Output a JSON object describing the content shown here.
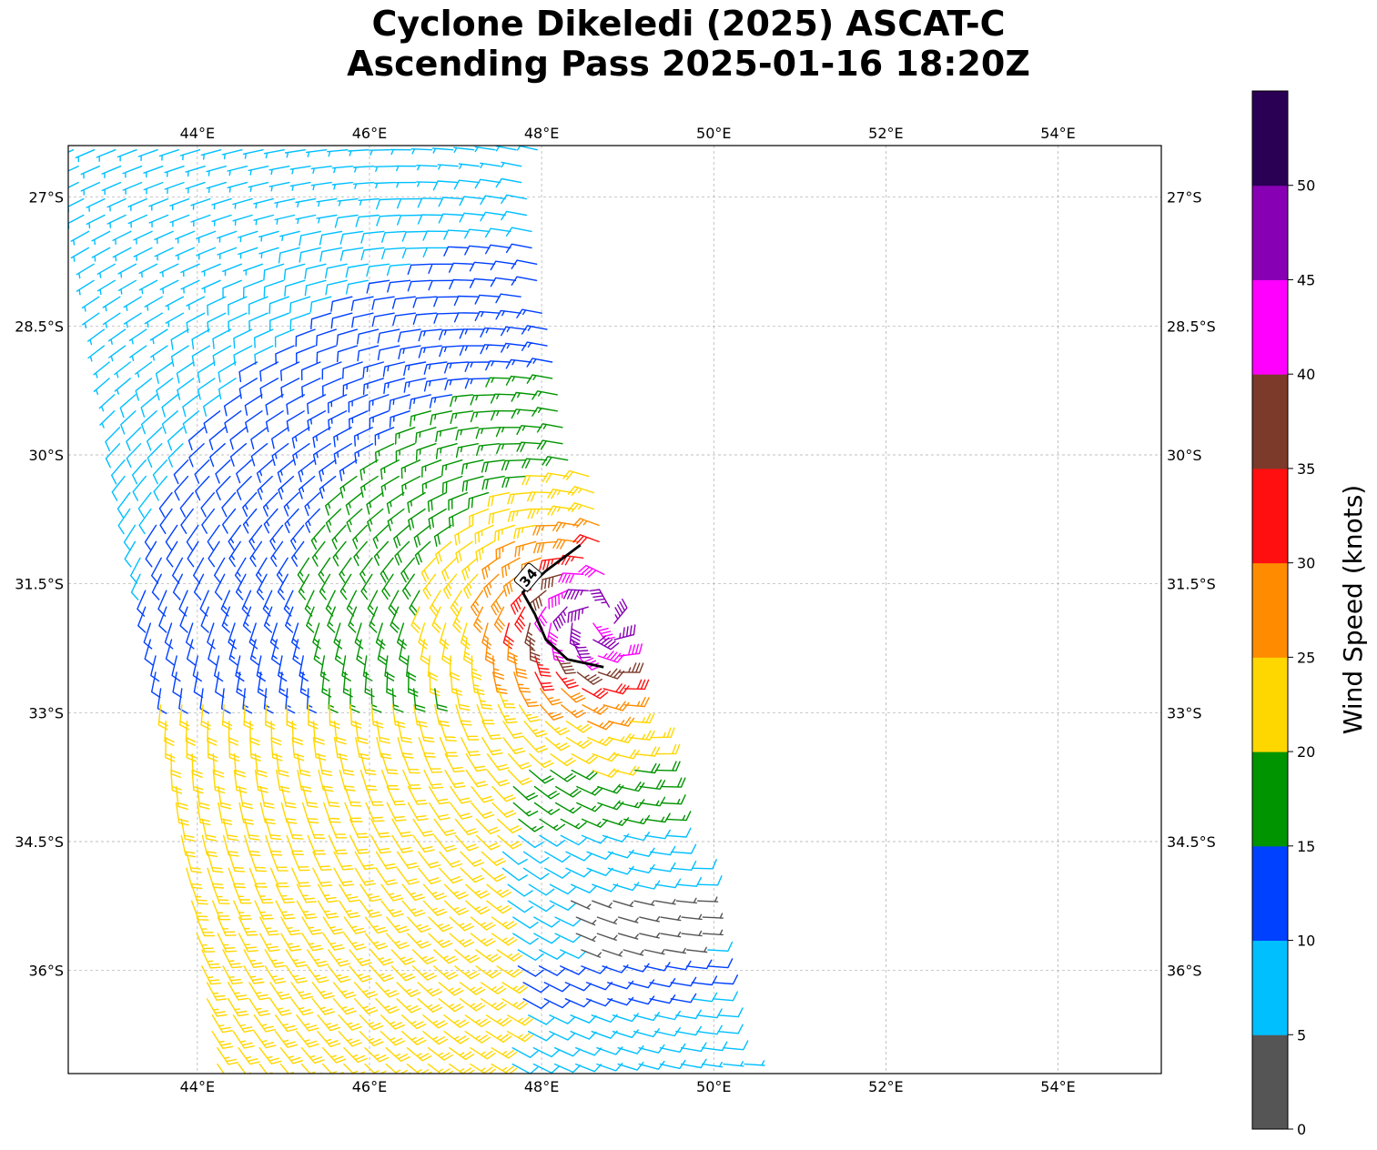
{
  "title": {
    "line1": "Cyclone Dikeledi (2025) ASCAT-C",
    "line2": "Ascending Pass 2025-01-16 18:20Z"
  },
  "map": {
    "lon_range": [
      42.5,
      55.2
    ],
    "lat_range": [
      -37.2,
      -26.4
    ],
    "lon_ticks": [
      {
        "value": 44,
        "label": "44°E"
      },
      {
        "value": 46,
        "label": "46°E"
      },
      {
        "value": 48,
        "label": "48°E"
      },
      {
        "value": 50,
        "label": "50°E"
      },
      {
        "value": 52,
        "label": "52°E"
      },
      {
        "value": 54,
        "label": "54°E"
      }
    ],
    "lat_ticks": [
      {
        "value": -27,
        "label": "27°S"
      },
      {
        "value": -28.5,
        "label": "28.5°S"
      },
      {
        "value": -30,
        "label": "30°S"
      },
      {
        "value": -31.5,
        "label": "31.5°S"
      },
      {
        "value": -33,
        "label": "33°S"
      },
      {
        "value": -34.5,
        "label": "34.5°S"
      },
      {
        "value": -36,
        "label": "36°S"
      }
    ],
    "gridlines": true,
    "gridline_color": "#aaaaaa"
  },
  "wind_field": {
    "center": {
      "lon": 48.65,
      "lat": -31.9
    },
    "swath_left_edge": [
      [
        42.5,
        -26.4
      ],
      [
        44.2,
        -37.2
      ]
    ],
    "swath_right_edge": [
      [
        48.0,
        -26.4
      ],
      [
        48.0,
        -28.3
      ],
      [
        48.6,
        -30.3
      ],
      [
        48.8,
        -31.8
      ],
      [
        50.0,
        -35.4
      ],
      [
        50.4,
        -37.2
      ]
    ]
  },
  "contour_34kt": {
    "label": "34",
    "points": [
      [
        48.45,
        -31.05
      ],
      [
        48.05,
        -31.35
      ],
      [
        47.78,
        -31.6
      ],
      [
        47.92,
        -31.85
      ],
      [
        48.05,
        -32.15
      ],
      [
        48.3,
        -32.38
      ],
      [
        48.72,
        -32.47
      ]
    ]
  },
  "colorbar": {
    "label": "Wind Speed (knots)",
    "ticks": [
      "0",
      "5",
      "10",
      "15",
      "20",
      "25",
      "30",
      "35",
      "40",
      "45",
      "50"
    ],
    "segments": [
      {
        "min": 0,
        "max": 5,
        "color": "#555555"
      },
      {
        "min": 5,
        "max": 10,
        "color": "#00bfff"
      },
      {
        "min": 10,
        "max": 15,
        "color": "#0040ff"
      },
      {
        "min": 15,
        "max": 20,
        "color": "#009400"
      },
      {
        "min": 20,
        "max": 25,
        "color": "#ffd700"
      },
      {
        "min": 25,
        "max": 30,
        "color": "#ff8c00"
      },
      {
        "min": 30,
        "max": 35,
        "color": "#ff0f0f"
      },
      {
        "min": 35,
        "max": 40,
        "color": "#7b3a2a"
      },
      {
        "min": 40,
        "max": 45,
        "color": "#ff00ff"
      },
      {
        "min": 45,
        "max": 50,
        "color": "#8800b3"
      },
      {
        "min": 50,
        "max": 55,
        "color": "#2a0055"
      }
    ]
  }
}
